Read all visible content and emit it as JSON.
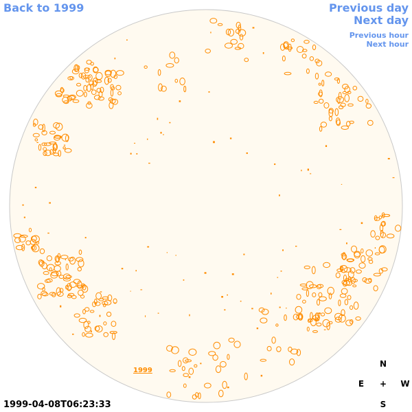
{
  "nav": {
    "back_label": "Back to 1999",
    "prev_day_label": "Previous day",
    "next_day_label": "Next day",
    "prev_hour_label": "Previous hour",
    "next_hour_label": "Next hour"
  },
  "timestamp": "1999-04-08T06:23:33",
  "compass": {
    "north": "N",
    "east": "E",
    "center": "+",
    "west": "W",
    "south": "S"
  },
  "map_label": "1999",
  "colors": {
    "link": "#6495ed",
    "disk_fill": "#fffaf0",
    "disk_border": "#c8c8c8",
    "contour": "#ff8c00",
    "text": "#000000"
  }
}
